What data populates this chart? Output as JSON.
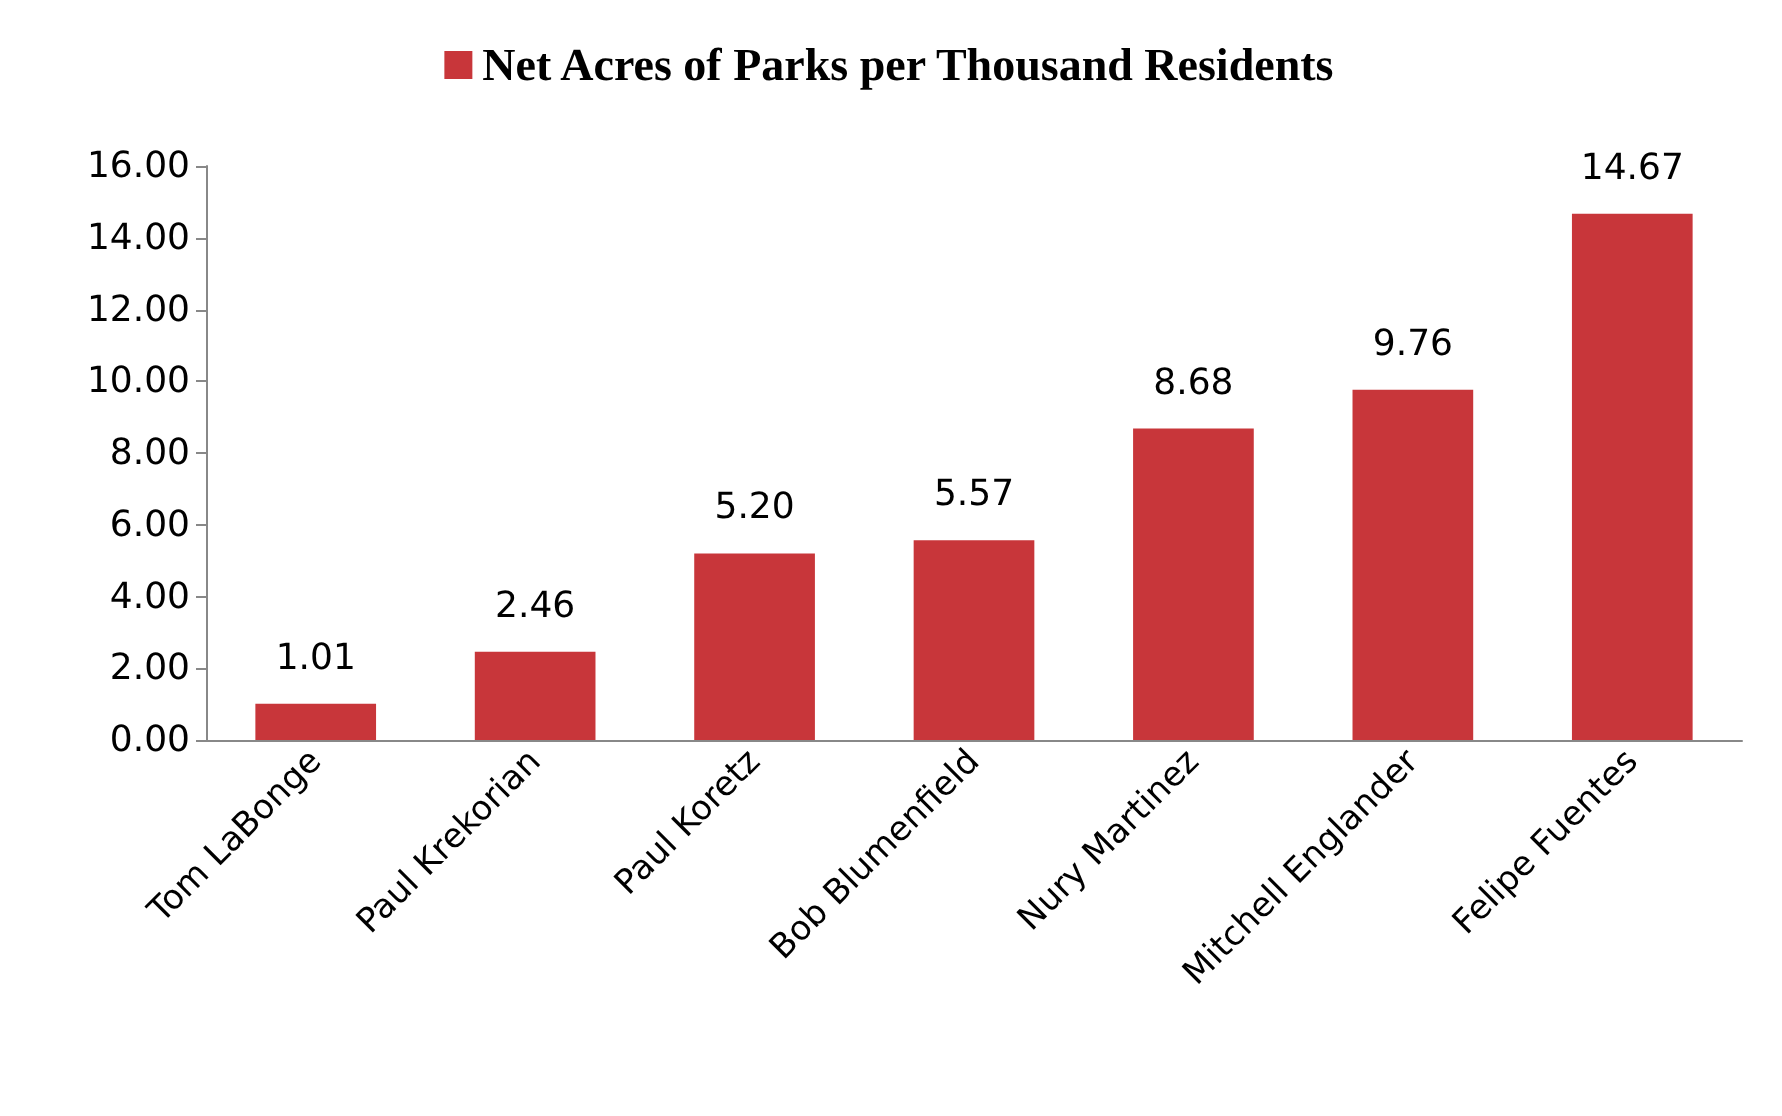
{
  "chart_data": {
    "type": "bar",
    "categories": [
      "Tom LaBonge",
      "Paul Krekorian",
      "Paul Koretz",
      "Bob Blumenfield",
      "Nury Martinez",
      "Mitchell Englander",
      "Felipe Fuentes"
    ],
    "series": [
      {
        "name": "Net Acres of Parks per Thousand Residents",
        "color": "#c8363a",
        "values": [
          1.01,
          2.46,
          5.2,
          5.57,
          8.68,
          9.76,
          14.67
        ],
        "value_labels": [
          "1.01",
          "2.46",
          "5.20",
          "5.57",
          "8.68",
          "9.76",
          "14.67"
        ]
      }
    ],
    "ylim": [
      0,
      16
    ],
    "yticks": [
      {
        "value": 0,
        "label": "0.00"
      },
      {
        "value": 2,
        "label": "2.00"
      },
      {
        "value": 4,
        "label": "4.00"
      },
      {
        "value": 6,
        "label": "6.00"
      },
      {
        "value": 8,
        "label": "8.00"
      },
      {
        "value": 10,
        "label": "10.00"
      },
      {
        "value": 12,
        "label": "12.00"
      },
      {
        "value": 14,
        "label": "14.00"
      },
      {
        "value": 16,
        "label": "16.00"
      }
    ],
    "grid": false,
    "legend": "top"
  }
}
